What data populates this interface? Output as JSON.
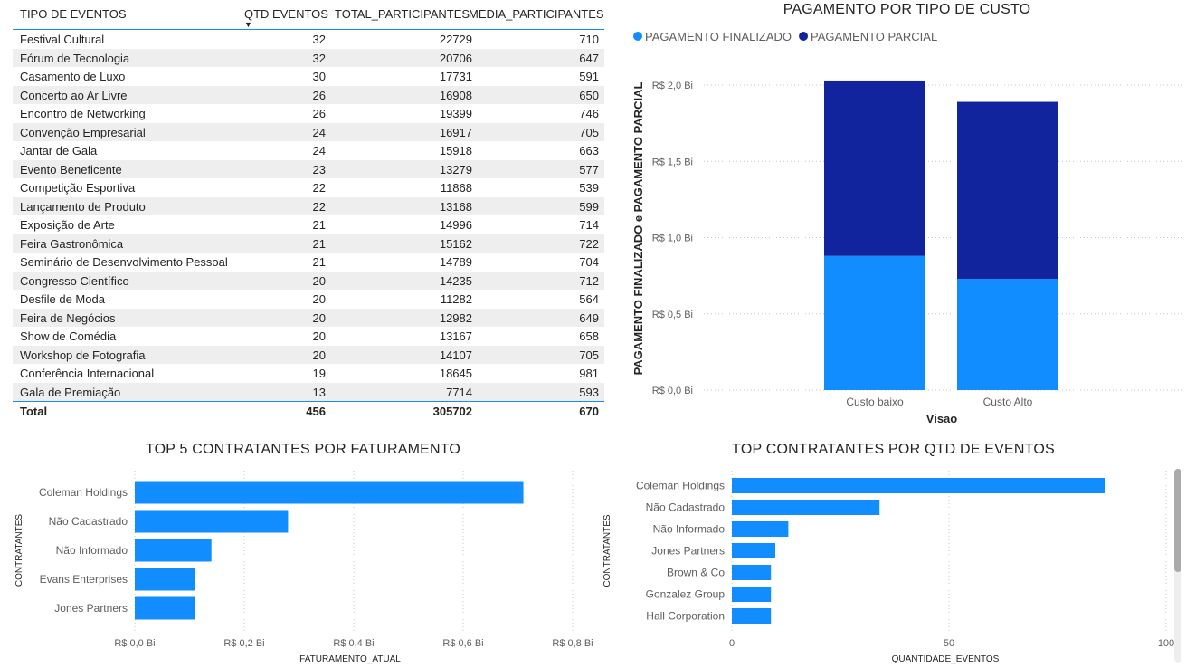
{
  "table": {
    "headers": [
      "TIPO DE EVENTOS",
      "QTD EVENTOS",
      "TOTAL_PARTICIPANTES",
      "MEDIA_PARTICIPANTES"
    ],
    "rows": [
      [
        "Festival Cultural",
        "32",
        "22729",
        "710"
      ],
      [
        "Fórum de Tecnologia",
        "32",
        "20706",
        "647"
      ],
      [
        "Casamento de Luxo",
        "30",
        "17731",
        "591"
      ],
      [
        "Concerto ao Ar Livre",
        "26",
        "16908",
        "650"
      ],
      [
        "Encontro de Networking",
        "26",
        "19399",
        "746"
      ],
      [
        "Convenção Empresarial",
        "24",
        "16917",
        "705"
      ],
      [
        "Jantar de Gala",
        "24",
        "15918",
        "663"
      ],
      [
        "Evento Beneficente",
        "23",
        "13279",
        "577"
      ],
      [
        "Competição Esportiva",
        "22",
        "11868",
        "539"
      ],
      [
        "Lançamento de Produto",
        "22",
        "13168",
        "599"
      ],
      [
        "Exposição de Arte",
        "21",
        "14996",
        "714"
      ],
      [
        "Feira Gastronômica",
        "21",
        "15162",
        "722"
      ],
      [
        "Seminário de Desenvolvimento Pessoal",
        "21",
        "14789",
        "704"
      ],
      [
        "Congresso Científico",
        "20",
        "14235",
        "712"
      ],
      [
        "Desfile de Moda",
        "20",
        "11282",
        "564"
      ],
      [
        "Feira de Negócios",
        "20",
        "12982",
        "649"
      ],
      [
        "Show de Comédia",
        "20",
        "13167",
        "658"
      ],
      [
        "Workshop de Fotografia",
        "20",
        "14107",
        "705"
      ],
      [
        "Conferência Internacional",
        "19",
        "18645",
        "981"
      ],
      [
        "Gala de Premiação",
        "13",
        "7714",
        "593"
      ]
    ],
    "total": [
      "Total",
      "456",
      "305702",
      "670"
    ]
  },
  "chart_data": [
    {
      "type": "bar",
      "stacked": true,
      "title": "PAGAMENTO POR TIPO DE CUSTO",
      "categories": [
        "Custo baixo",
        "Custo Alto"
      ],
      "series": [
        {
          "name": "PAGAMENTO FINALIZADO",
          "values": [
            0.88,
            0.73
          ],
          "color": "#118DFF"
        },
        {
          "name": "PAGAMENTO PARCIAL",
          "values": [
            1.15,
            1.16
          ],
          "color": "#12239E"
        }
      ],
      "xlabel": "Visao",
      "ylabel": "PAGAMENTO FINALIZADO e PAGAMENTO PARCIAL",
      "ylim": [
        0,
        2.0
      ],
      "yticks": [
        0,
        0.5,
        1.0,
        1.5,
        2.0
      ],
      "ytick_labels": [
        "R$ 0,0 Bi",
        "R$ 0,5 Bi",
        "R$ 1,0 Bi",
        "R$ 1,5 Bi",
        "R$ 2,0 Bi"
      ],
      "legend_position": "top-left",
      "grid": true
    },
    {
      "type": "bar",
      "orientation": "horizontal",
      "title": "TOP 5 CONTRATANTES POR FATURAMENTO",
      "categories": [
        "Coleman Holdings",
        "Não Cadastrado",
        "Não Informado",
        "Evans Enterprises",
        "Jones Partners"
      ],
      "values": [
        0.71,
        0.28,
        0.14,
        0.11,
        0.11
      ],
      "xlabel": "FATURAMENTO_ATUAL",
      "ylabel": "CONTRATANTES",
      "xlim": [
        0,
        0.8
      ],
      "xticks": [
        0,
        0.2,
        0.4,
        0.6,
        0.8
      ],
      "xtick_labels": [
        "R$ 0,0 Bi",
        "R$ 0,2 Bi",
        "R$ 0,4 Bi",
        "R$ 0,6 Bi",
        "R$ 0,8 Bi"
      ],
      "color": "#118DFF",
      "grid": true
    },
    {
      "type": "bar",
      "orientation": "horizontal",
      "title": "TOP CONTRATANTES POR QTD DE EVENTOS",
      "categories": [
        "Coleman Holdings",
        "Não Cadastrado",
        "Não Informado",
        "Jones Partners",
        "Brown & Co",
        "Gonzalez Group",
        "Hall Corporation"
      ],
      "values": [
        86,
        34,
        13,
        10,
        9,
        9,
        9
      ],
      "xlabel": "QUANTIDADE_EVENTOS",
      "ylabel": "CONTRATANTES",
      "xlim": [
        0,
        100
      ],
      "xticks": [
        0,
        50,
        100
      ],
      "xtick_labels": [
        "0",
        "50",
        "100"
      ],
      "color": "#118DFF",
      "grid": true
    }
  ]
}
